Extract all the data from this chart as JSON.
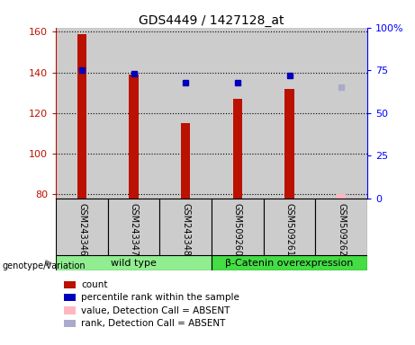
{
  "title": "GDS4449 / 1427128_at",
  "samples": [
    "GSM243346",
    "GSM243347",
    "GSM243348",
    "GSM509260",
    "GSM509261",
    "GSM509262"
  ],
  "count_values": [
    159,
    139,
    115,
    127,
    132,
    80
  ],
  "count_absent": [
    false,
    false,
    false,
    false,
    false,
    true
  ],
  "percentile_values": [
    75,
    73,
    68,
    68,
    72,
    65
  ],
  "percentile_absent": [
    false,
    false,
    false,
    false,
    false,
    true
  ],
  "ylim_left": [
    78,
    162
  ],
  "ylim_right": [
    0,
    100
  ],
  "yticks_left": [
    80,
    100,
    120,
    140,
    160
  ],
  "yticks_right": [
    0,
    25,
    50,
    75,
    100
  ],
  "yticklabels_right": [
    "0",
    "25",
    "50",
    "75",
    "100%"
  ],
  "groups": [
    {
      "label": "wild type",
      "indices": [
        0,
        1,
        2
      ],
      "color": "#90ee90"
    },
    {
      "label": "β-Catenin overexpression",
      "indices": [
        3,
        4,
        5
      ],
      "color": "#44dd44"
    }
  ],
  "count_color_normal": "#bb1100",
  "count_color_absent": "#ffb6c1",
  "percentile_color_normal": "#0000bb",
  "percentile_color_absent": "#aaaacc",
  "bar_baseline": 78,
  "bg_sample": "#cccccc",
  "legend_items": [
    {
      "color": "#bb1100",
      "label": "count"
    },
    {
      "color": "#0000bb",
      "label": "percentile rank within the sample"
    },
    {
      "color": "#ffb6c1",
      "label": "value, Detection Call = ABSENT"
    },
    {
      "color": "#aaaacc",
      "label": "rank, Detection Call = ABSENT"
    }
  ]
}
